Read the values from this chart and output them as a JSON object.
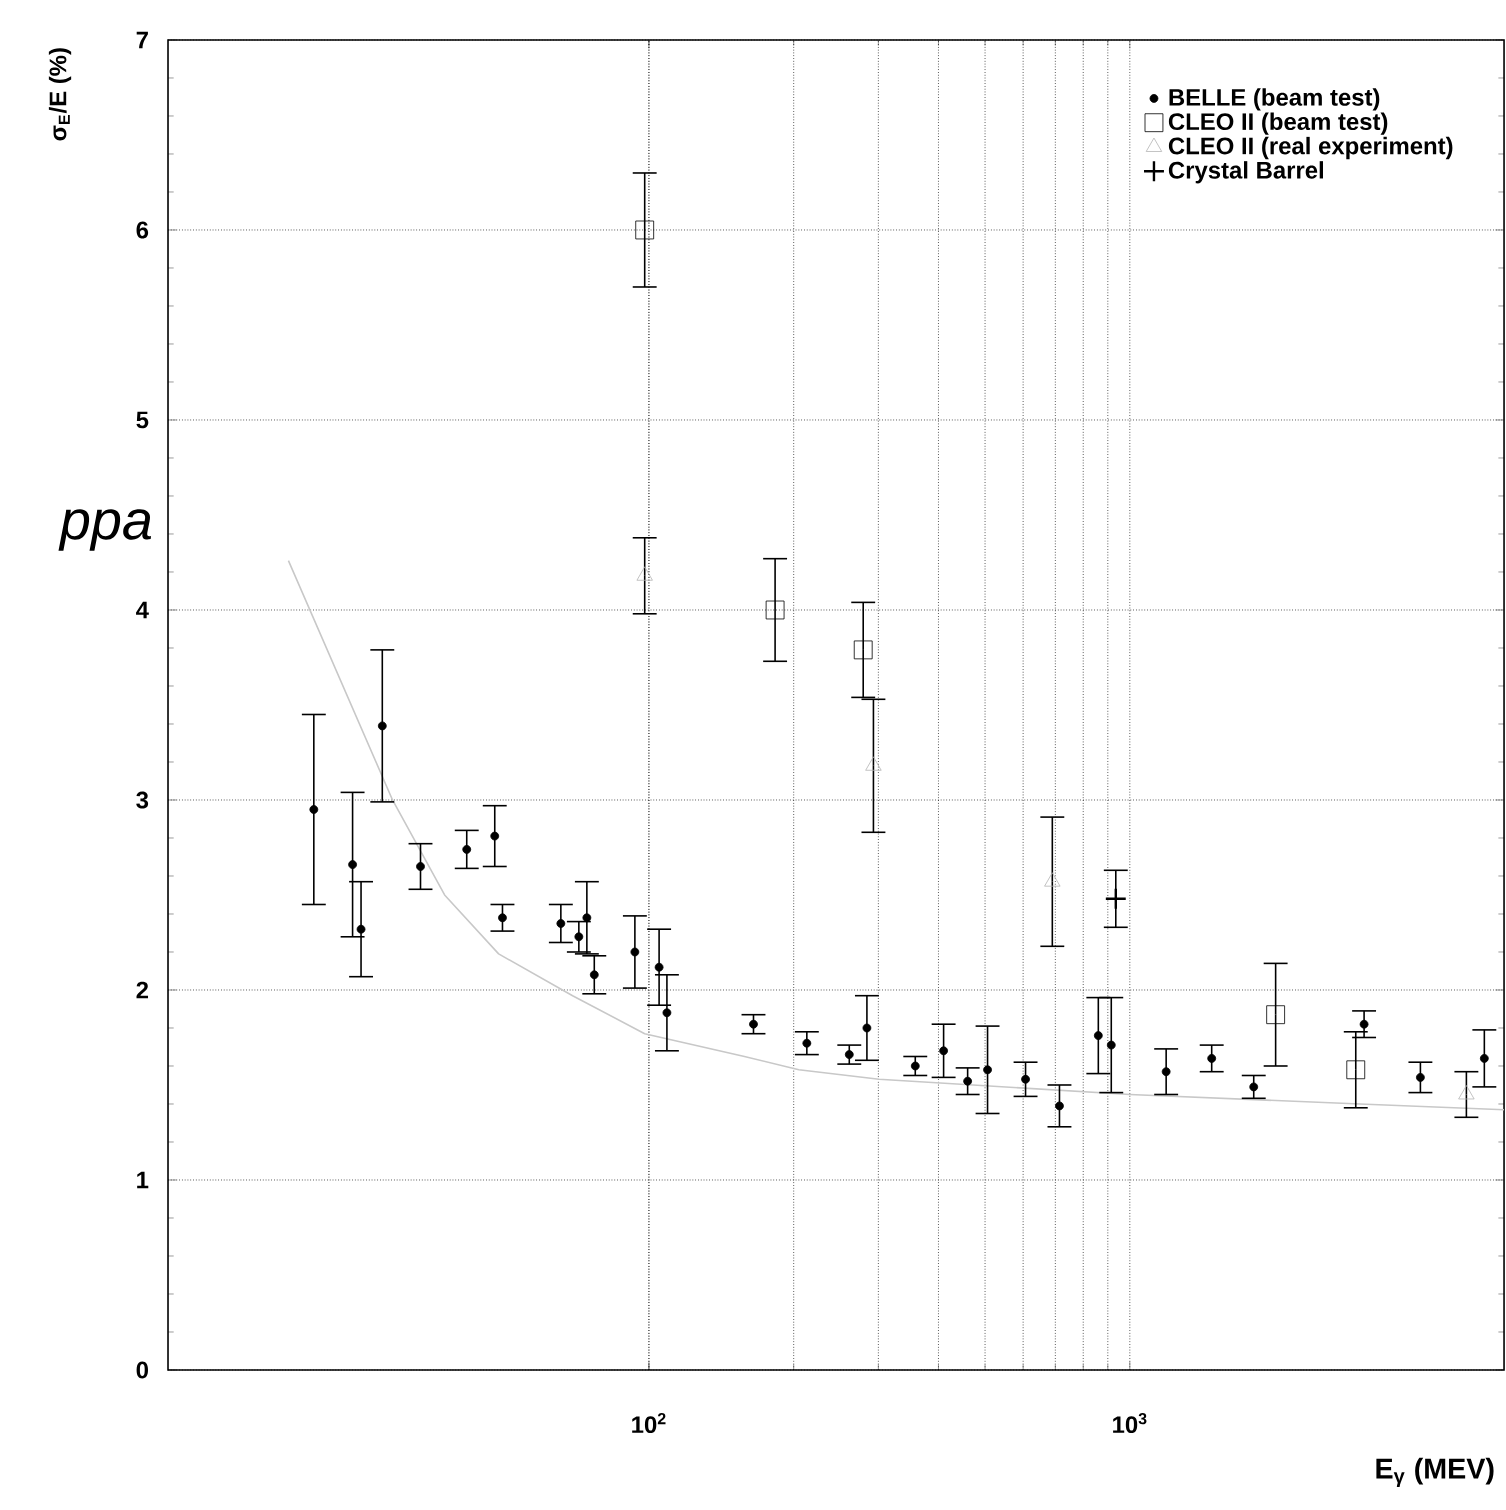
{
  "chart_data": {
    "type": "scatter",
    "xlabel": "E$_{γ}$ (MEV)",
    "ylabel": "σ$_{E}$/E  (%)",
    "annotations": [
      "ppa"
    ],
    "xlim": [
      10,
      6000
    ],
    "ylim": [
      0,
      7
    ],
    "log": "x",
    "grid": true,
    "legend": "top right",
    "xticks": [
      {
        "value": 100,
        "label": "10$^{2}$"
      },
      {
        "value": 1000,
        "label": "10$^{3}$"
      }
    ],
    "yticks": [
      0,
      1,
      2,
      3,
      4,
      5,
      6,
      7
    ],
    "series": [
      {
        "type": "line",
        "color": "#c8c8c8",
        "marker": "none",
        "x": [
          17.8,
          29.3,
          37.6,
          48.7,
          69.4,
          98,
          158,
          205,
          301,
          1000,
          3010,
          6000
        ],
        "values": [
          4.26,
          3.0,
          2.5,
          2.19,
          1.97,
          1.77,
          1.65,
          1.58,
          1.53,
          1.45,
          1.4,
          1.37
        ]
      },
      {
        "name": "BELLE (beam test)",
        "color": "#000000",
        "marker": "circle",
        "x": [
          20.1,
          24.2,
          25.2,
          27.9,
          33.5,
          41.8,
          47.8,
          49.6,
          65.6,
          74.3,
          71.5,
          77,
          93.5,
          105,
          109,
          165,
          213,
          261,
          284,
          358,
          410,
          460,
          506,
          607,
          714,
          860,
          915,
          1190,
          1480,
          1810,
          3070,
          4020,
          5460
        ],
        "values": [
          2.95,
          2.66,
          2.32,
          3.39,
          2.65,
          2.74,
          2.81,
          2.38,
          2.35,
          2.38,
          2.28,
          2.08,
          2.2,
          2.12,
          1.88,
          1.82,
          1.72,
          1.66,
          1.8,
          1.6,
          1.68,
          1.52,
          1.58,
          1.53,
          1.39,
          1.76,
          1.71,
          1.57,
          1.64,
          1.49,
          1.82,
          1.54,
          1.64
        ],
        "errors": [
          0.5,
          0.38,
          0.25,
          0.4,
          0.12,
          0.1,
          0.16,
          0.07,
          0.1,
          0.19,
          0.08,
          0.1,
          0.19,
          0.2,
          0.2,
          0.05,
          0.06,
          0.05,
          0.17,
          0.05,
          0.14,
          0.07,
          0.23,
          0.09,
          0.11,
          0.2,
          0.25,
          0.12,
          0.07,
          0.06,
          0.07,
          0.08,
          0.15
        ]
      },
      {
        "name": "CLEO II (beam test)",
        "color": "#000000",
        "marker": "square",
        "x": [
          98,
          183,
          279,
          2010,
          2950
        ],
        "values": [
          6.0,
          4.0,
          3.79,
          1.87,
          1.58
        ],
        "errors": [
          0.3,
          0.27,
          0.25,
          0.27,
          0.2
        ]
      },
      {
        "name": "CLEO II (real experiment)",
        "color": "#b4b4b4",
        "marker": "triangle",
        "x": [
          98,
          293,
          690,
          5010
        ],
        "values": [
          4.18,
          3.18,
          2.57,
          1.45
        ],
        "errors": [
          0.2,
          0.35,
          0.34,
          0.12
        ]
      },
      {
        "name": "Crystal Barrel",
        "color": "#000000",
        "marker": "cross",
        "x": [
          935
        ],
        "values": [
          2.48
        ],
        "errors": [
          0.15
        ]
      }
    ]
  }
}
